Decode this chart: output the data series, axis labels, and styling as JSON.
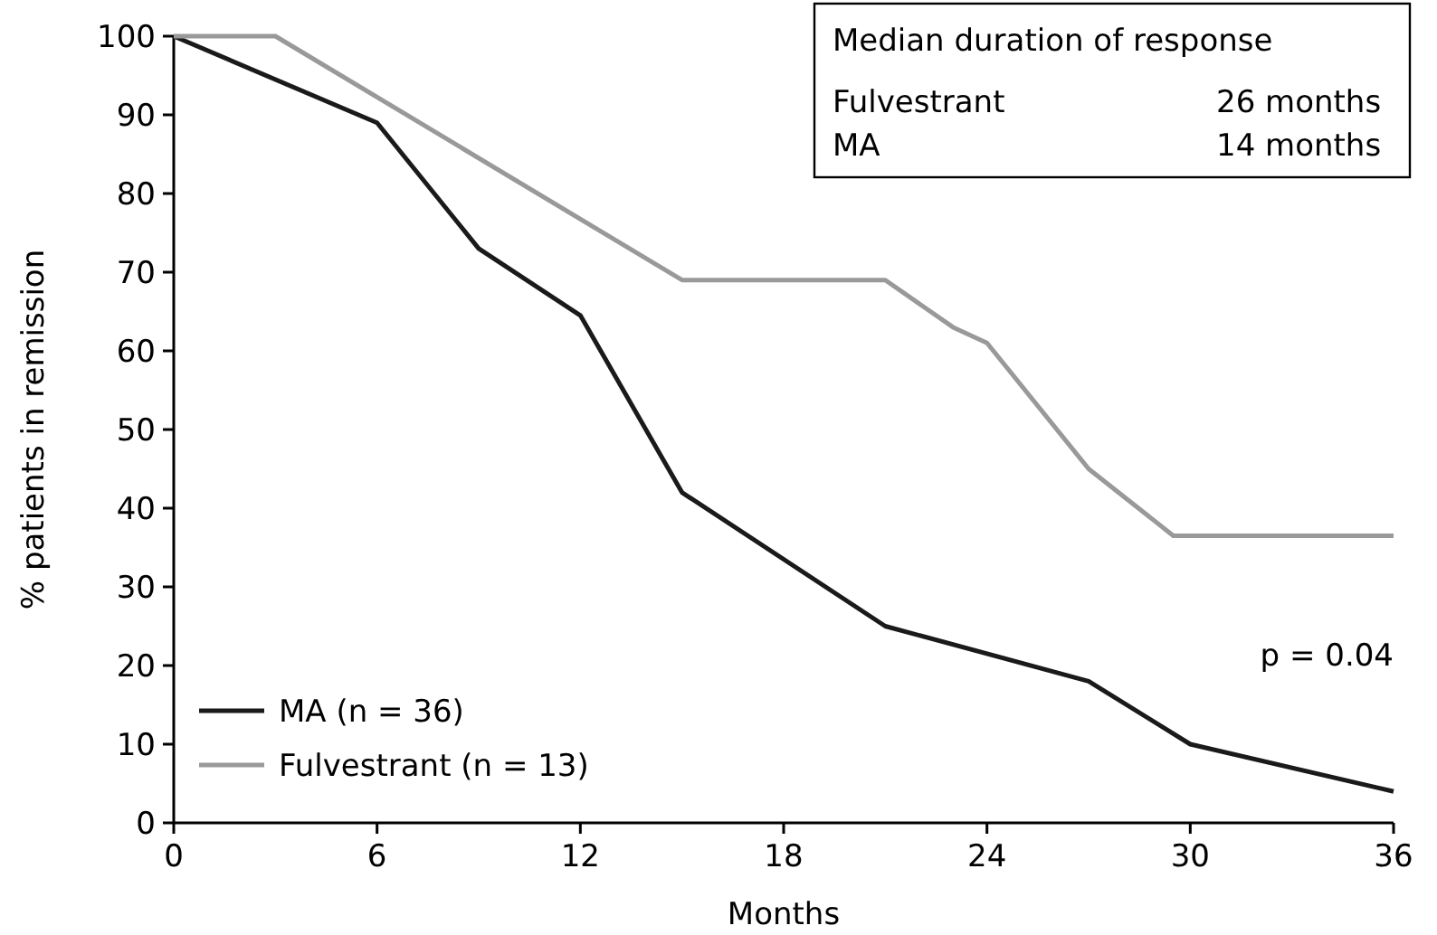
{
  "chart_data": {
    "type": "line",
    "xlabel": "Months",
    "ylabel": "% patients in remission",
    "xlim": [
      0,
      36
    ],
    "xticks": [
      0,
      6,
      12,
      18,
      24,
      30,
      36
    ],
    "ylim": [
      0,
      100
    ],
    "yticks": [
      0,
      10,
      20,
      30,
      40,
      50,
      60,
      70,
      80,
      90,
      100
    ],
    "grid": false,
    "legend": "bottom left",
    "line_style": "solid",
    "series": [
      {
        "name": "MA (n = 36)",
        "color": "#1a1a1a",
        "x": [
          0,
          6,
          9,
          12,
          15,
          21,
          27,
          30,
          36
        ],
        "values": [
          100,
          89,
          73,
          64.5,
          42,
          25,
          18,
          10,
          4
        ]
      },
      {
        "name": "Fulvestrant (n = 13)",
        "color": "#999999",
        "x": [
          0,
          3,
          15,
          21,
          23,
          24,
          27,
          29.5,
          36
        ],
        "values": [
          100,
          100,
          69,
          69,
          63,
          61,
          45,
          36.5,
          36.5
        ]
      }
    ],
    "annotations": [
      "Median duration of response",
      "Fulvestrant",
      "26 months",
      "MA",
      "14 months",
      "p = 0.04"
    ]
  }
}
